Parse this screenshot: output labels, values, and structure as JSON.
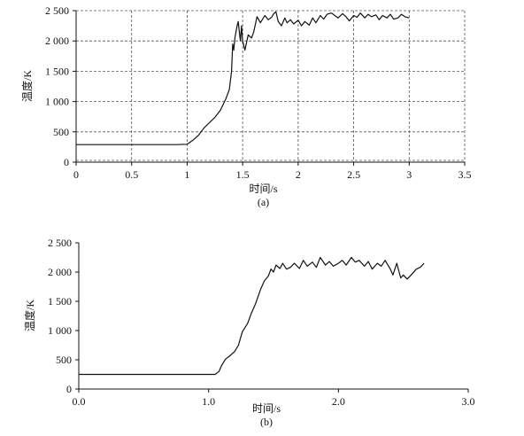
{
  "chart_data": [
    {
      "type": "line",
      "caption": "(a)",
      "xlabel": "时间/s",
      "ylabel": "温度/K",
      "xlim": [
        0,
        3.5
      ],
      "ylim": [
        0,
        2500
      ],
      "xticks": [
        0,
        0.5,
        1,
        1.5,
        2,
        2.5,
        3,
        3.5
      ],
      "xtick_labels": [
        "0",
        "0.5",
        "1",
        "1.5",
        "2",
        "2.5",
        "3",
        "3.5"
      ],
      "yticks": [
        0,
        500,
        1000,
        1500,
        2000,
        2500
      ],
      "ytick_labels": [
        "0",
        "500",
        "1 000",
        "1 500",
        "2 000",
        "2 500"
      ],
      "grid": true,
      "series": [
        {
          "x": [
            0,
            0.3,
            0.6,
            0.9,
            1.0,
            1.05,
            1.1,
            1.15,
            1.2,
            1.25,
            1.3,
            1.35,
            1.38,
            1.4,
            1.41,
            1.42,
            1.43,
            1.44,
            1.45,
            1.46,
            1.47,
            1.48,
            1.49,
            1.5,
            1.52,
            1.55,
            1.58,
            1.6,
            1.63,
            1.66,
            1.7,
            1.73,
            1.76,
            1.78,
            1.8,
            1.82,
            1.85,
            1.88,
            1.9,
            1.93,
            1.96,
            2.0,
            2.03,
            2.06,
            2.1,
            2.13,
            2.16,
            2.2,
            2.23,
            2.26,
            2.3,
            2.33,
            2.36,
            2.4,
            2.43,
            2.46,
            2.5,
            2.53,
            2.56,
            2.6,
            2.63,
            2.66,
            2.7,
            2.73,
            2.76,
            2.8,
            2.83,
            2.86,
            2.9,
            2.93,
            2.96,
            3.0
          ],
          "y": [
            290,
            290,
            290,
            290,
            295,
            360,
            440,
            560,
            650,
            740,
            860,
            1050,
            1200,
            1500,
            1950,
            1850,
            2050,
            2150,
            2250,
            2320,
            2150,
            2000,
            2250,
            2000,
            1850,
            2100,
            2050,
            2150,
            2400,
            2300,
            2420,
            2350,
            2390,
            2450,
            2480,
            2320,
            2250,
            2380,
            2300,
            2350,
            2280,
            2340,
            2250,
            2320,
            2260,
            2380,
            2300,
            2420,
            2360,
            2440,
            2460,
            2420,
            2380,
            2450,
            2400,
            2330,
            2420,
            2390,
            2460,
            2380,
            2440,
            2400,
            2430,
            2350,
            2420,
            2380,
            2440,
            2360,
            2380,
            2440,
            2400,
            2380
          ]
        }
      ]
    },
    {
      "type": "line",
      "caption": "(b)",
      "xlabel": "时间/s",
      "ylabel": "温度/K",
      "xlim": [
        0,
        3.0
      ],
      "ylim": [
        0,
        2500
      ],
      "xticks": [
        0,
        1.0,
        2.0,
        3.0
      ],
      "xtick_labels": [
        "0.0",
        "1.0",
        "2.0",
        "3.0"
      ],
      "yticks": [
        0,
        500,
        1000,
        1500,
        2000,
        2500
      ],
      "ytick_labels": [
        "0",
        "500",
        "1 000",
        "1 500",
        "2 000",
        "2 500"
      ],
      "grid": false,
      "series": [
        {
          "x": [
            0,
            0.3,
            0.6,
            0.9,
            1.05,
            1.08,
            1.1,
            1.13,
            1.16,
            1.2,
            1.23,
            1.26,
            1.3,
            1.33,
            1.36,
            1.4,
            1.43,
            1.46,
            1.48,
            1.5,
            1.52,
            1.55,
            1.57,
            1.6,
            1.63,
            1.66,
            1.7,
            1.73,
            1.76,
            1.8,
            1.83,
            1.86,
            1.9,
            1.93,
            1.96,
            2.0,
            2.03,
            2.06,
            2.1,
            2.13,
            2.16,
            2.2,
            2.23,
            2.26,
            2.3,
            2.33,
            2.36,
            2.4,
            2.42,
            2.45,
            2.48,
            2.5,
            2.53,
            2.56,
            2.6,
            2.63,
            2.66
          ],
          "y": [
            250,
            250,
            250,
            250,
            250,
            300,
            400,
            510,
            560,
            640,
            750,
            980,
            1120,
            1300,
            1450,
            1700,
            1850,
            1930,
            2050,
            2000,
            2120,
            2060,
            2150,
            2050,
            2080,
            2150,
            2060,
            2200,
            2100,
            2170,
            2080,
            2250,
            2120,
            2180,
            2100,
            2150,
            2200,
            2120,
            2250,
            2170,
            2200,
            2100,
            2180,
            2050,
            2150,
            2100,
            2200,
            2050,
            1950,
            2150,
            1900,
            1950,
            1880,
            1950,
            2050,
            2080,
            2150
          ]
        }
      ]
    }
  ]
}
